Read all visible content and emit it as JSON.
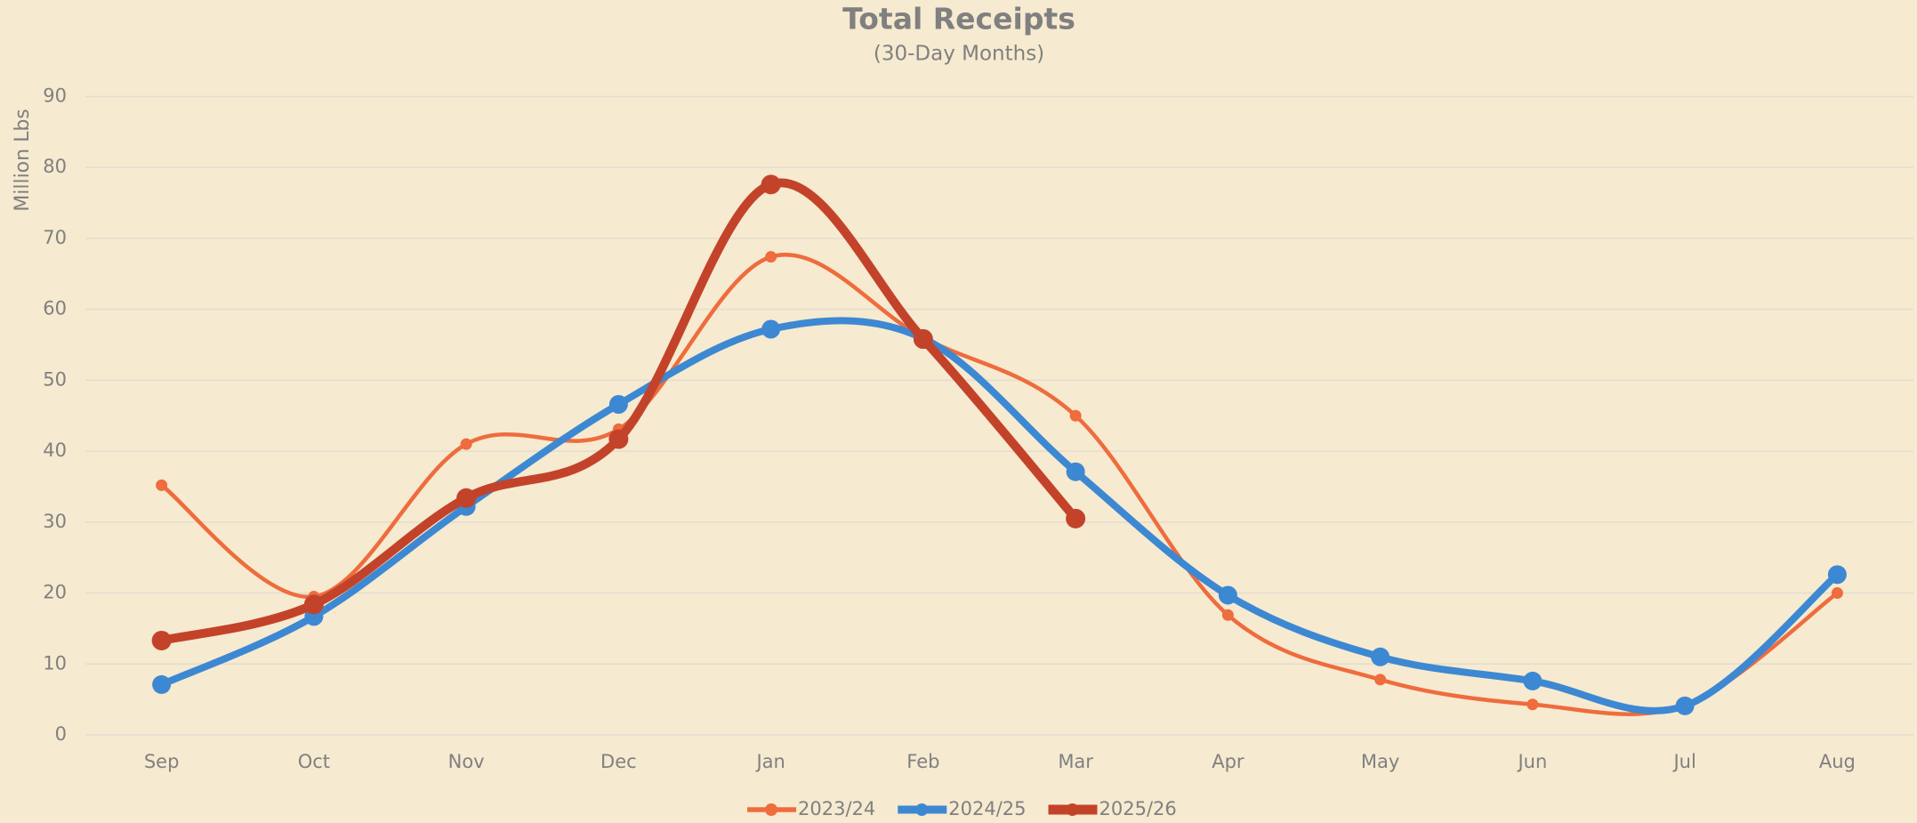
{
  "chart_data": {
    "type": "line",
    "title": "Total Receipts",
    "subtitle": "(30-Day Months)",
    "y_label": "Million Lbs",
    "categories": [
      "Sep",
      "Oct",
      "Nov",
      "Dec",
      "Jan",
      "Feb",
      "Mar",
      "Apr",
      "May",
      "Jun",
      "Jul",
      "Aug"
    ],
    "series": [
      {
        "name": "2023/24",
        "color": "#ee6c3d",
        "values": [
          35.2,
          19.5,
          41,
          43.1,
          67.4,
          56,
          45,
          16.9,
          7.8,
          4.3,
          4.2,
          20
        ]
      },
      {
        "name": "2024/25",
        "color": "#3d88d2",
        "values": [
          7.1,
          16.7,
          32.2,
          46.6,
          57.2,
          55.9,
          37.1,
          19.7,
          11,
          7.6,
          4.1,
          22.6
        ]
      },
      {
        "name": "2025/26",
        "color": "#c3432a",
        "values": [
          13.3,
          18.4,
          33.4,
          41.7,
          77.6,
          55.8,
          30.5,
          null,
          null,
          null,
          null,
          null
        ]
      }
    ],
    "ylim": [
      0,
      90
    ],
    "yticks": [
      0,
      10,
      20,
      30,
      40,
      50,
      60,
      70,
      80,
      90
    ],
    "grid": true,
    "legend": "bottom"
  }
}
